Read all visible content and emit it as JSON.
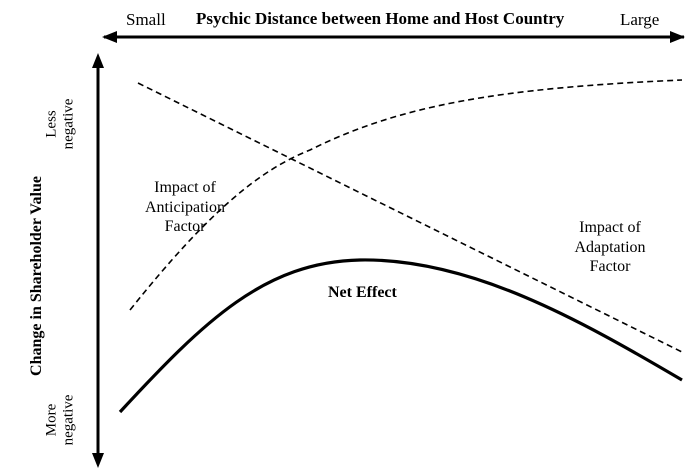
{
  "x_axis": {
    "title": "Psychic Distance between Home and Host Country",
    "left_label": "Small",
    "right_label": "Large"
  },
  "y_axis": {
    "title": "Change in Shareholder Value",
    "top_label": [
      "Less",
      "negative"
    ],
    "bottom_label": [
      "More",
      "negative"
    ]
  },
  "curves": {
    "anticipation": {
      "label": [
        "Impact of",
        "Anticipation",
        "Factor"
      ],
      "style": "dashed",
      "trend": "rising, leveling off"
    },
    "adaptation": {
      "label": [
        "Impact of",
        "Adaptation",
        "Factor"
      ],
      "style": "dashed",
      "trend": "falling"
    },
    "net_effect": {
      "label": "Net Effect",
      "style": "solid",
      "trend": "rises then falls"
    }
  },
  "colors": {
    "ink": "#000000",
    "background": "#ffffff"
  }
}
